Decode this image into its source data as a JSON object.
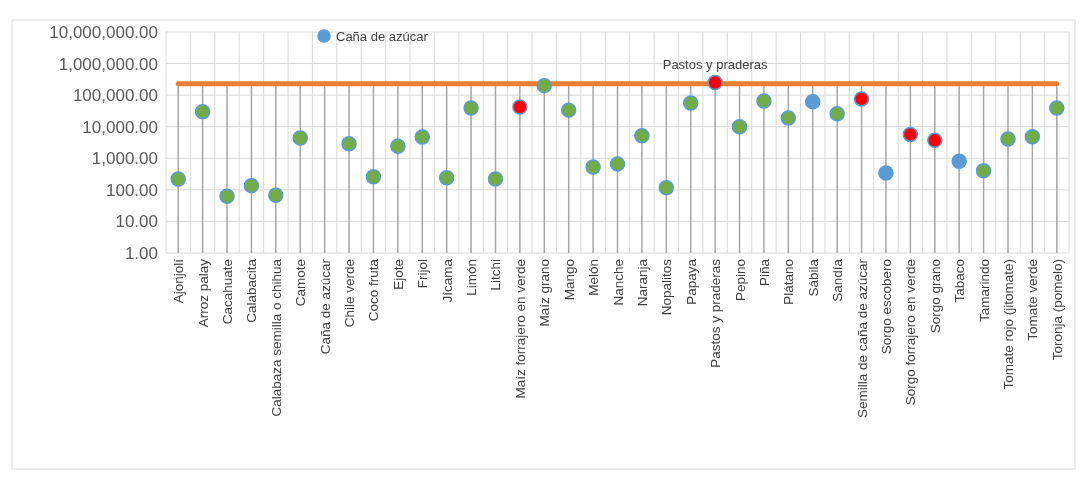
{
  "chart_data": {
    "type": "scatter",
    "categories": [
      "Ajonjolí",
      "Arroz palay",
      "Cacahuate",
      "Calabacita",
      "Calabaza semilla o chihua",
      "Camote",
      "Caña de azúcar",
      "Chile verde",
      "Coco fruta",
      "Ejote",
      "Frijol",
      "Jícama",
      "Limón",
      "Litchi",
      "Maíz forrajero en verde",
      "Maíz grano",
      "Mango",
      "Melón",
      "Nanche",
      "Naranja",
      "Nopalitos",
      "Papaya",
      "Pastos y praderas",
      "Pepino",
      "Piña",
      "Plátano",
      "Sábila",
      "Sandía",
      "Semilla de caña de azúcar",
      "Sorgo escobero",
      "Sorgo forrajero en verde",
      "Sorgo grano",
      "Tabaco",
      "Tamarindo",
      "Tomate rojo (jitomate)",
      "Tomate verde",
      "Toronja (pomelo)"
    ],
    "series": [
      {
        "name": "Caña de azúcar",
        "color": "#5b9bd5",
        "values": [
          220,
          30000,
          63,
          136,
          68,
          4400,
          null,
          2900,
          260,
          2400,
          4700,
          240,
          39000,
          220,
          42000,
          200000,
          33500,
          530,
          665,
          5200,
          116,
          56000,
          250000,
          10000,
          65000,
          19000,
          62000,
          25600,
          76000,
          340,
          5700,
          3700,
          800,
          400,
          4100,
          4800,
          39000
        ],
        "colors": [
          "#70ad47",
          "#70ad47",
          "#70ad47",
          "#70ad47",
          "#70ad47",
          "#70ad47",
          null,
          "#70ad47",
          "#70ad47",
          "#70ad47",
          "#70ad47",
          "#70ad47",
          "#70ad47",
          "#70ad47",
          "#ff0000",
          "#70ad47",
          "#70ad47",
          "#70ad47",
          "#70ad47",
          "#70ad47",
          "#70ad47",
          "#70ad47",
          "#ff0000",
          "#70ad47",
          "#70ad47",
          "#70ad47",
          "#5b9bd5",
          "#70ad47",
          "#ff0000",
          "#5b9bd5",
          "#ff0000",
          "#ff0000",
          "#5b9bd5",
          "#70ad47",
          "#70ad47",
          "#70ad47",
          "#70ad47"
        ]
      }
    ],
    "ref_lines": [
      {
        "axis": "y",
        "value": 230000,
        "color": "#ed7d31"
      }
    ],
    "annotations": [
      {
        "text": "Pastos y praderas",
        "x": "Pastos y praderas",
        "y": 250000
      }
    ],
    "log": "y",
    "ylim": [
      1,
      10000000
    ],
    "yticks": [
      {
        "value": 1,
        "label": "1.00"
      },
      {
        "value": 10,
        "label": "10.00"
      },
      {
        "value": 100,
        "label": "100.00"
      },
      {
        "value": 1000,
        "label": "1,000.00"
      },
      {
        "value": 10000,
        "label": "10,000.00"
      },
      {
        "value": 100000,
        "label": "100,000.00"
      },
      {
        "value": 1000000,
        "label": "1,000,000.00"
      },
      {
        "value": 10000000,
        "label": "10,000,000.00"
      }
    ],
    "grid": true,
    "legend": "top",
    "marker": "circle"
  }
}
